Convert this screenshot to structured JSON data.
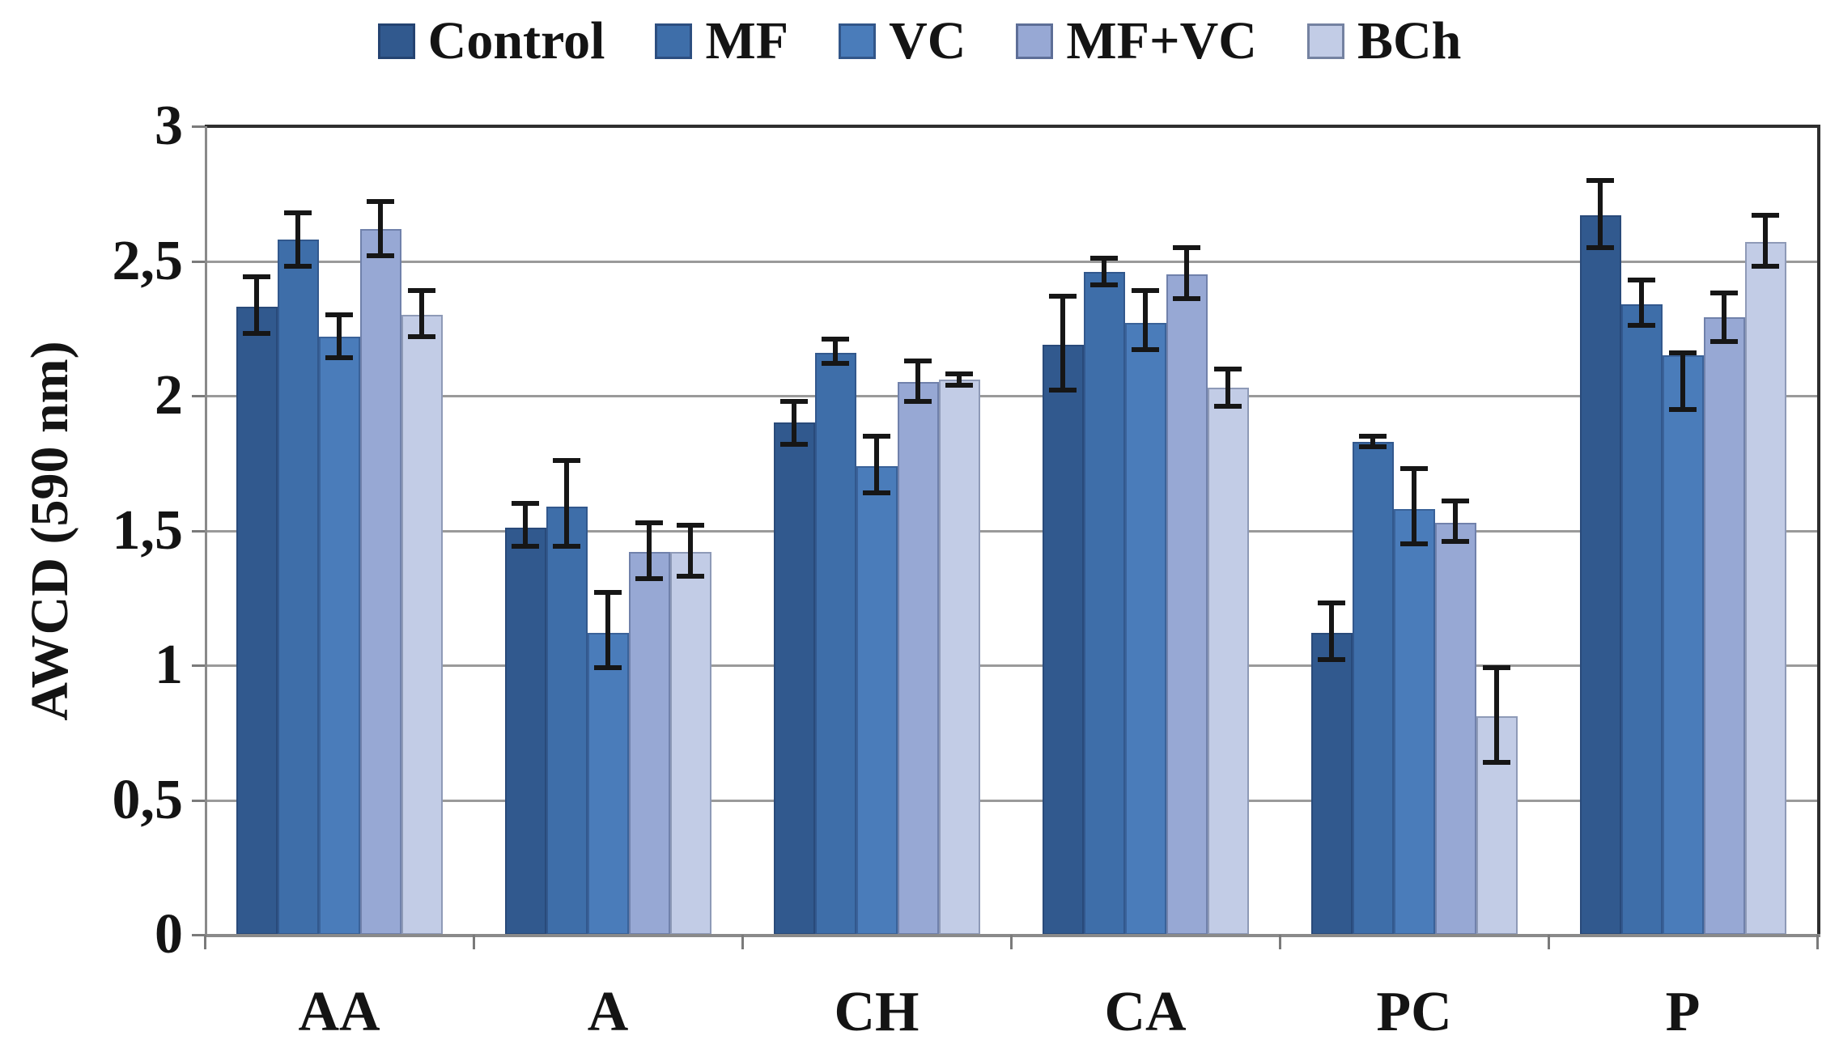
{
  "figure": {
    "background": "#ffffff"
  },
  "chart_data": {
    "type": "bar",
    "title": "",
    "xlabel": "",
    "ylabel": "AWCD (590 nm)",
    "ylim": [
      0,
      3
    ],
    "grid": true,
    "legend_position": "top",
    "yticks": [
      {
        "value": 0,
        "label": "0"
      },
      {
        "value": 0.5,
        "label": "0,5"
      },
      {
        "value": 1,
        "label": "1"
      },
      {
        "value": 1.5,
        "label": "1,5"
      },
      {
        "value": 2,
        "label": "2"
      },
      {
        "value": 2.5,
        "label": "2,5"
      },
      {
        "value": 3,
        "label": "3"
      }
    ],
    "categories": [
      "AA",
      "A",
      "CH",
      "CA",
      "PC",
      "P"
    ],
    "series": [
      {
        "name": "Control",
        "color": "#31598E",
        "values": [
          2.33,
          1.51,
          1.9,
          2.19,
          1.12,
          2.67
        ],
        "err_up": [
          0.11,
          0.09,
          0.08,
          0.18,
          0.11,
          0.13
        ],
        "err_down": [
          0.1,
          0.07,
          0.08,
          0.17,
          0.1,
          0.12
        ]
      },
      {
        "name": "MF",
        "color": "#3E6EA9",
        "values": [
          2.58,
          1.59,
          2.16,
          2.46,
          1.83,
          2.34
        ],
        "err_up": [
          0.1,
          0.17,
          0.05,
          0.05,
          0.02,
          0.09
        ],
        "err_down": [
          0.1,
          0.15,
          0.04,
          0.05,
          0.02,
          0.08
        ]
      },
      {
        "name": "VC",
        "color": "#4A7CBA",
        "values": [
          2.22,
          1.12,
          1.74,
          2.27,
          1.58,
          2.15
        ],
        "err_up": [
          0.08,
          0.15,
          0.11,
          0.12,
          0.15,
          0.01
        ],
        "err_down": [
          0.08,
          0.13,
          0.1,
          0.1,
          0.13,
          0.2
        ]
      },
      {
        "name": "MF+VC",
        "color": "#97A8D4",
        "values": [
          2.62,
          1.42,
          2.05,
          2.45,
          1.53,
          2.29
        ],
        "err_up": [
          0.1,
          0.11,
          0.08,
          0.1,
          0.08,
          0.09
        ],
        "err_down": [
          0.1,
          0.1,
          0.07,
          0.09,
          0.07,
          0.09
        ]
      },
      {
        "name": "BCh",
        "color": "#C2CCE6",
        "values": [
          2.3,
          1.42,
          2.06,
          2.03,
          0.81,
          2.57
        ],
        "err_up": [
          0.09,
          0.1,
          0.02,
          0.07,
          0.18,
          0.1
        ],
        "err_down": [
          0.08,
          0.09,
          0.02,
          0.07,
          0.17,
          0.09
        ]
      }
    ]
  }
}
